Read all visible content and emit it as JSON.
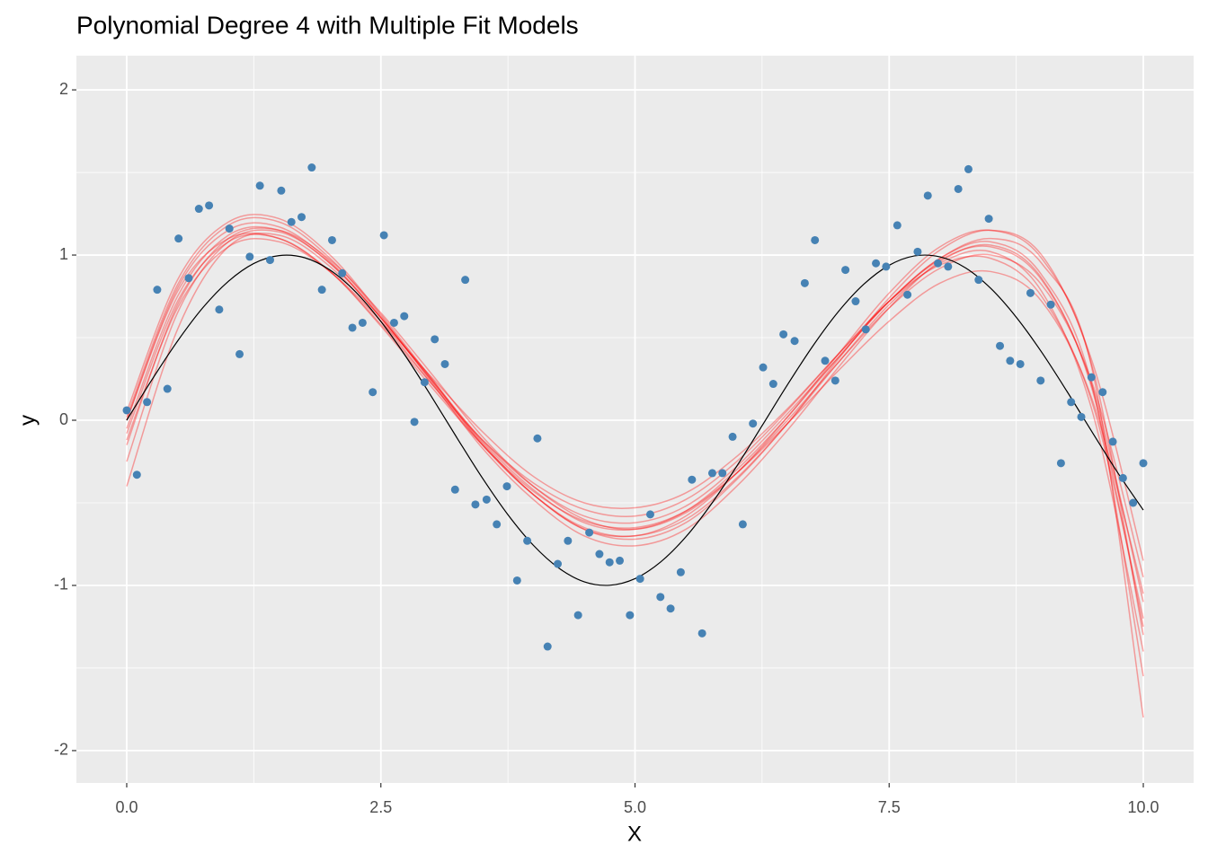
{
  "chart_data": {
    "type": "scatter",
    "title": "Polynomial Degree 4 with Multiple Fit Models",
    "xlabel": "X",
    "ylabel": "y",
    "xlim": [
      -0.495,
      10.495
    ],
    "ylim": [
      -2.196,
      2.207
    ],
    "xticks": [
      {
        "value": 0,
        "label": "0.0"
      },
      2.5,
      {
        "value": 5,
        "label": "5.0"
      },
      7.5,
      {
        "value": 10,
        "label": "10.0"
      }
    ],
    "yticks": [
      -2,
      -1,
      0,
      1,
      2
    ],
    "x_minor_grid": [
      1.25,
      3.75,
      6.25,
      8.75
    ],
    "y_minor_grid": [
      -1.5,
      -0.5,
      0.5,
      1.5
    ],
    "grid": true,
    "points": {
      "color": "#4682b4",
      "x": [
        0,
        0.1,
        0.2,
        0.3,
        0.4,
        0.51,
        0.61,
        0.71,
        0.81,
        0.91,
        1.01,
        1.11,
        1.21,
        1.31,
        1.41,
        1.52,
        1.62,
        1.72,
        1.82,
        1.92,
        2.02,
        2.12,
        2.22,
        2.32,
        2.42,
        2.53,
        2.63,
        2.73,
        2.83,
        2.93,
        3.03,
        3.13,
        3.23,
        3.33,
        3.43,
        3.54,
        3.64,
        3.74,
        3.84,
        3.94,
        4.04,
        4.14,
        4.24,
        4.34,
        4.44,
        4.55,
        4.65,
        4.75,
        4.85,
        4.95,
        5.05,
        5.15,
        5.25,
        5.35,
        5.45,
        5.56,
        5.66,
        5.76,
        5.86,
        5.96,
        6.06,
        6.16,
        6.26,
        6.36,
        6.46,
        6.57,
        6.67,
        6.77,
        6.87,
        6.97,
        7.07,
        7.17,
        7.27,
        7.37,
        7.47,
        7.58,
        7.68,
        7.78,
        7.88,
        7.98,
        8.08,
        8.18,
        8.28,
        8.38,
        8.48,
        8.59,
        8.69,
        8.79,
        8.89,
        8.99,
        9.09,
        9.19,
        9.29,
        9.39,
        9.49,
        9.6,
        9.7,
        9.8,
        9.9,
        10.0
      ],
      "values": [
        0.06,
        -0.33,
        0.11,
        0.79,
        0.19,
        1.1,
        0.86,
        1.28,
        1.3,
        0.67,
        1.16,
        0.4,
        0.99,
        1.42,
        0.97,
        1.39,
        1.2,
        1.23,
        1.53,
        0.79,
        1.09,
        0.89,
        0.56,
        0.59,
        0.17,
        1.12,
        0.59,
        0.63,
        -0.01,
        0.23,
        0.49,
        0.34,
        -0.42,
        0.85,
        -0.51,
        -0.48,
        -0.63,
        -0.4,
        -0.97,
        -0.73,
        -0.11,
        -1.37,
        -0.87,
        -0.73,
        -1.18,
        -0.68,
        -0.81,
        -0.86,
        -0.85,
        -1.18,
        -0.96,
        -0.57,
        -1.07,
        -1.14,
        -0.92,
        -0.36,
        -1.29,
        -0.32,
        -0.32,
        -0.1,
        -0.63,
        -0.02,
        0.32,
        0.22,
        0.52,
        0.48,
        0.83,
        1.09,
        0.36,
        0.24,
        0.91,
        0.72,
        0.55,
        0.95,
        0.93,
        1.18,
        0.76,
        1.02,
        1.36,
        0.95,
        0.93,
        1.4,
        1.52,
        0.85,
        1.22,
        0.45,
        0.36,
        0.34,
        0.77,
        0.24,
        0.7,
        -0.26,
        0.11,
        0.02,
        0.26,
        0.17,
        -0.13,
        -0.35,
        -0.5,
        -0.26
      ]
    },
    "true_curve": {
      "color": "#000000",
      "x": [
        0,
        0.25,
        0.5,
        0.75,
        1,
        1.25,
        1.5,
        1.75,
        2,
        2.25,
        2.5,
        2.75,
        3,
        3.25,
        3.5,
        3.75,
        4,
        4.25,
        4.5,
        4.75,
        5,
        5.25,
        5.5,
        5.75,
        6,
        6.25,
        6.5,
        6.75,
        7,
        7.25,
        7.5,
        7.75,
        8,
        8.25,
        8.5,
        8.75,
        9,
        9.25,
        9.5,
        9.75,
        10
      ],
      "values": [
        0,
        0.247,
        0.479,
        0.682,
        0.841,
        0.949,
        0.997,
        0.984,
        0.909,
        0.778,
        0.598,
        0.382,
        0.141,
        -0.108,
        -0.351,
        -0.572,
        -0.757,
        -0.895,
        -0.978,
        -0.999,
        -0.959,
        -0.859,
        -0.706,
        -0.508,
        -0.279,
        -0.033,
        0.215,
        0.45,
        0.657,
        0.823,
        0.938,
        0.995,
        0.989,
        0.923,
        0.798,
        0.624,
        0.412,
        0.174,
        -0.075,
        -0.319,
        -0.544
      ]
    },
    "fit_curves": {
      "color": "#ff0000",
      "opacity": 0.35,
      "x": [
        0,
        0.5,
        1,
        1.5,
        2,
        2.5,
        3,
        3.5,
        4,
        4.5,
        5,
        5.5,
        6,
        6.5,
        7,
        7.5,
        8,
        8.5,
        9,
        9.5,
        10
      ],
      "series": [
        {
          "values": [
            -0.05,
            0.75,
            1.12,
            1.15,
            0.95,
            0.62,
            0.25,
            -0.13,
            -0.42,
            -0.62,
            -0.66,
            -0.55,
            -0.3,
            0.02,
            0.38,
            0.72,
            0.97,
            1.05,
            0.85,
            0.2,
            -1.1
          ]
        },
        {
          "values": [
            0.05,
            0.85,
            1.2,
            1.22,
            1.0,
            0.64,
            0.25,
            -0.15,
            -0.45,
            -0.66,
            -0.7,
            -0.6,
            -0.35,
            -0.02,
            0.35,
            0.7,
            0.95,
            1.02,
            0.78,
            0.05,
            -1.4
          ]
        },
        {
          "values": [
            -0.4,
            0.55,
            1.05,
            1.12,
            0.93,
            0.6,
            0.22,
            -0.15,
            -0.45,
            -0.65,
            -0.7,
            -0.58,
            -0.32,
            0.02,
            0.4,
            0.77,
            1.05,
            1.15,
            0.98,
            0.32,
            -1.3
          ]
        },
        {
          "values": [
            0.0,
            0.78,
            1.1,
            1.1,
            0.9,
            0.58,
            0.22,
            -0.12,
            -0.38,
            -0.54,
            -0.58,
            -0.48,
            -0.25,
            0.06,
            0.4,
            0.72,
            0.94,
            0.98,
            0.75,
            0.1,
            -1.2
          ]
        },
        {
          "values": [
            -0.15,
            0.7,
            1.1,
            1.15,
            0.97,
            0.65,
            0.28,
            -0.1,
            -0.4,
            -0.6,
            -0.66,
            -0.56,
            -0.32,
            0.0,
            0.35,
            0.68,
            0.92,
            1.0,
            0.82,
            0.22,
            -0.95
          ]
        },
        {
          "values": [
            0.02,
            0.82,
            1.18,
            1.2,
            0.98,
            0.63,
            0.23,
            -0.17,
            -0.48,
            -0.7,
            -0.76,
            -0.66,
            -0.4,
            -0.06,
            0.32,
            0.68,
            0.96,
            1.06,
            0.86,
            0.18,
            -1.25
          ]
        },
        {
          "values": [
            -0.08,
            0.72,
            1.08,
            1.1,
            0.9,
            0.57,
            0.2,
            -0.15,
            -0.43,
            -0.61,
            -0.65,
            -0.55,
            -0.32,
            -0.02,
            0.3,
            0.6,
            0.83,
            0.9,
            0.72,
            0.12,
            -1.05
          ]
        },
        {
          "values": [
            -0.25,
            0.65,
            1.08,
            1.14,
            0.95,
            0.62,
            0.24,
            -0.14,
            -0.45,
            -0.66,
            -0.72,
            -0.62,
            -0.36,
            -0.02,
            0.37,
            0.74,
            1.03,
            1.15,
            1.0,
            0.35,
            -0.85
          ]
        },
        {
          "values": [
            0.0,
            0.8,
            1.15,
            1.17,
            0.96,
            0.62,
            0.24,
            -0.12,
            -0.4,
            -0.58,
            -0.62,
            -0.52,
            -0.28,
            0.04,
            0.38,
            0.72,
            0.98,
            1.08,
            0.88,
            0.2,
            -1.55
          ]
        },
        {
          "values": [
            -0.12,
            0.68,
            1.05,
            1.08,
            0.9,
            0.6,
            0.26,
            -0.07,
            -0.34,
            -0.5,
            -0.53,
            -0.44,
            -0.22,
            0.07,
            0.4,
            0.72,
            0.98,
            1.1,
            0.95,
            0.3,
            -1.8
          ]
        }
      ]
    }
  }
}
